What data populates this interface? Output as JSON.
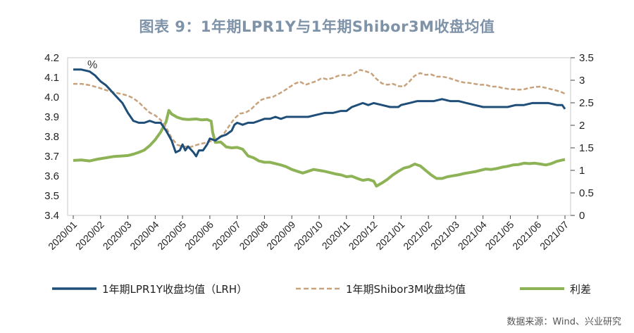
{
  "title": "图表 9：1年期LPR1Y与1年期Shibor3M收盘均值",
  "source": "数据来源：Wind、兴业研究",
  "unit_label": "%",
  "colors": {
    "lpr": "#1f4e79",
    "shibor": "#c8a27c",
    "spread": "#8db356"
  },
  "chart_data": {
    "type": "line",
    "x_labels": [
      "2020/01",
      "2020/02",
      "2020/03",
      "2020/04",
      "2020/05",
      "2020/06",
      "2020/07",
      "2020/08",
      "2020/09",
      "2020/10",
      "2020/11",
      "2020/12",
      "2021/01",
      "2021/02",
      "2021/03",
      "2021/04",
      "2021/05",
      "2021/06",
      "2021/07"
    ],
    "y_left": {
      "min": 3.4,
      "max": 4.2,
      "ticks": [
        "4.2",
        "4.1",
        "4.0",
        "3.9",
        "3.8",
        "3.7",
        "3.6",
        "3.5",
        "3.4"
      ]
    },
    "y_right": {
      "min": 0,
      "max": 3.5,
      "ticks": [
        "3.5",
        "3",
        "2.5",
        "2",
        "1.5",
        "1",
        "0.5",
        "0"
      ]
    },
    "series": [
      {
        "name": "1年期LPR1Y收盘均值（LRH）",
        "axis": "left",
        "style": "solid",
        "points": [
          [
            0,
            4.14
          ],
          [
            0.3,
            4.14
          ],
          [
            0.6,
            4.13
          ],
          [
            0.8,
            4.11
          ],
          [
            1.0,
            4.08
          ],
          [
            1.2,
            4.06
          ],
          [
            1.4,
            4.03
          ],
          [
            1.6,
            4.0
          ],
          [
            1.8,
            3.97
          ],
          [
            2.0,
            3.92
          ],
          [
            2.2,
            3.88
          ],
          [
            2.4,
            3.87
          ],
          [
            2.6,
            3.87
          ],
          [
            2.8,
            3.88
          ],
          [
            3.0,
            3.87
          ],
          [
            3.2,
            3.87
          ],
          [
            3.4,
            3.83
          ],
          [
            3.6,
            3.78
          ],
          [
            3.75,
            3.72
          ],
          [
            3.9,
            3.73
          ],
          [
            4.0,
            3.76
          ],
          [
            4.1,
            3.73
          ],
          [
            4.2,
            3.75
          ],
          [
            4.4,
            3.72
          ],
          [
            4.5,
            3.7
          ],
          [
            4.6,
            3.73
          ],
          [
            4.75,
            3.73
          ],
          [
            4.9,
            3.76
          ],
          [
            5.0,
            3.79
          ],
          [
            5.2,
            3.78
          ],
          [
            5.4,
            3.8
          ],
          [
            5.6,
            3.81
          ],
          [
            5.8,
            3.83
          ],
          [
            5.9,
            3.86
          ],
          [
            6.0,
            3.87
          ],
          [
            6.2,
            3.86
          ],
          [
            6.4,
            3.87
          ],
          [
            6.6,
            3.87
          ],
          [
            6.8,
            3.88
          ],
          [
            7.0,
            3.89
          ],
          [
            7.2,
            3.89
          ],
          [
            7.4,
            3.9
          ],
          [
            7.6,
            3.89
          ],
          [
            7.8,
            3.9
          ],
          [
            8.0,
            3.9
          ],
          [
            8.3,
            3.9
          ],
          [
            8.6,
            3.9
          ],
          [
            8.9,
            3.91
          ],
          [
            9.2,
            3.92
          ],
          [
            9.5,
            3.92
          ],
          [
            9.8,
            3.93
          ],
          [
            10.0,
            3.93
          ],
          [
            10.2,
            3.95
          ],
          [
            10.4,
            3.96
          ],
          [
            10.6,
            3.97
          ],
          [
            10.8,
            3.96
          ],
          [
            11.0,
            3.97
          ],
          [
            11.3,
            3.96
          ],
          [
            11.6,
            3.95
          ],
          [
            11.9,
            3.95
          ],
          [
            12.0,
            3.96
          ],
          [
            12.3,
            3.97
          ],
          [
            12.6,
            3.98
          ],
          [
            12.9,
            3.98
          ],
          [
            13.2,
            3.98
          ],
          [
            13.5,
            3.99
          ],
          [
            13.8,
            3.98
          ],
          [
            14.1,
            3.98
          ],
          [
            14.4,
            3.97
          ],
          [
            14.7,
            3.96
          ],
          [
            15.0,
            3.95
          ],
          [
            15.3,
            3.95
          ],
          [
            15.6,
            3.95
          ],
          [
            15.9,
            3.95
          ],
          [
            16.2,
            3.96
          ],
          [
            16.5,
            3.96
          ],
          [
            16.8,
            3.97
          ],
          [
            17.1,
            3.97
          ],
          [
            17.4,
            3.97
          ],
          [
            17.7,
            3.96
          ],
          [
            17.9,
            3.96
          ],
          [
            18.0,
            3.94
          ]
        ]
      },
      {
        "name": "1年期Shibor3M收盘均值",
        "axis": "right",
        "style": "dashed",
        "points": [
          [
            0,
            2.92
          ],
          [
            0.3,
            2.92
          ],
          [
            0.6,
            2.89
          ],
          [
            0.9,
            2.84
          ],
          [
            1.2,
            2.78
          ],
          [
            1.5,
            2.73
          ],
          [
            1.8,
            2.69
          ],
          [
            2.0,
            2.66
          ],
          [
            2.2,
            2.6
          ],
          [
            2.4,
            2.51
          ],
          [
            2.6,
            2.39
          ],
          [
            2.8,
            2.28
          ],
          [
            3.0,
            2.22
          ],
          [
            3.2,
            2.12
          ],
          [
            3.4,
            1.95
          ],
          [
            3.6,
            1.72
          ],
          [
            3.8,
            1.57
          ],
          [
            4.0,
            1.53
          ],
          [
            4.3,
            1.52
          ],
          [
            4.6,
            1.58
          ],
          [
            4.9,
            1.62
          ],
          [
            5.2,
            1.68
          ],
          [
            5.5,
            1.8
          ],
          [
            5.7,
            1.98
          ],
          [
            5.9,
            2.15
          ],
          [
            6.1,
            2.26
          ],
          [
            6.3,
            2.28
          ],
          [
            6.5,
            2.35
          ],
          [
            6.7,
            2.47
          ],
          [
            6.9,
            2.57
          ],
          [
            7.1,
            2.61
          ],
          [
            7.3,
            2.63
          ],
          [
            7.5,
            2.69
          ],
          [
            7.7,
            2.76
          ],
          [
            7.9,
            2.84
          ],
          [
            8.1,
            2.92
          ],
          [
            8.3,
            2.97
          ],
          [
            8.5,
            2.9
          ],
          [
            8.7,
            2.94
          ],
          [
            8.9,
            2.98
          ],
          [
            9.1,
            3.05
          ],
          [
            9.3,
            3.02
          ],
          [
            9.5,
            3.05
          ],
          [
            9.7,
            3.1
          ],
          [
            9.9,
            3.12
          ],
          [
            10.1,
            3.1
          ],
          [
            10.3,
            3.16
          ],
          [
            10.5,
            3.23
          ],
          [
            10.7,
            3.2
          ],
          [
            10.9,
            3.16
          ],
          [
            11.1,
            3.03
          ],
          [
            11.3,
            2.93
          ],
          [
            11.5,
            2.9
          ],
          [
            11.7,
            2.92
          ],
          [
            11.9,
            2.87
          ],
          [
            12.1,
            2.86
          ],
          [
            12.3,
            2.97
          ],
          [
            12.5,
            3.1
          ],
          [
            12.7,
            3.16
          ],
          [
            12.9,
            3.12
          ],
          [
            13.1,
            3.13
          ],
          [
            13.3,
            3.08
          ],
          [
            13.5,
            3.08
          ],
          [
            13.7,
            3.06
          ],
          [
            13.9,
            3.02
          ],
          [
            14.1,
            2.98
          ],
          [
            14.3,
            2.95
          ],
          [
            14.5,
            2.94
          ],
          [
            14.7,
            2.92
          ],
          [
            14.9,
            2.9
          ],
          [
            15.1,
            2.9
          ],
          [
            15.3,
            2.86
          ],
          [
            15.5,
            2.86
          ],
          [
            15.7,
            2.83
          ],
          [
            15.9,
            2.81
          ],
          [
            16.1,
            2.8
          ],
          [
            16.3,
            2.79
          ],
          [
            16.5,
            2.8
          ],
          [
            16.7,
            2.83
          ],
          [
            16.9,
            2.85
          ],
          [
            17.1,
            2.86
          ],
          [
            17.3,
            2.83
          ],
          [
            17.5,
            2.8
          ],
          [
            17.7,
            2.77
          ],
          [
            17.9,
            2.73
          ],
          [
            18.0,
            2.7
          ]
        ]
      },
      {
        "name": "利差",
        "axis": "right",
        "style": "solid",
        "points": [
          [
            0,
            1.22
          ],
          [
            0.3,
            1.23
          ],
          [
            0.6,
            1.21
          ],
          [
            0.9,
            1.25
          ],
          [
            1.2,
            1.28
          ],
          [
            1.5,
            1.31
          ],
          [
            1.8,
            1.32
          ],
          [
            2.0,
            1.33
          ],
          [
            2.2,
            1.36
          ],
          [
            2.4,
            1.4
          ],
          [
            2.6,
            1.45
          ],
          [
            2.8,
            1.55
          ],
          [
            3.0,
            1.68
          ],
          [
            3.2,
            1.85
          ],
          [
            3.4,
            2.08
          ],
          [
            3.5,
            2.33
          ],
          [
            3.6,
            2.25
          ],
          [
            3.8,
            2.18
          ],
          [
            4.0,
            2.14
          ],
          [
            4.2,
            2.13
          ],
          [
            4.5,
            2.14
          ],
          [
            4.7,
            2.12
          ],
          [
            4.9,
            2.13
          ],
          [
            5.05,
            2.09
          ],
          [
            5.1,
            1.85
          ],
          [
            5.2,
            1.62
          ],
          [
            5.4,
            1.63
          ],
          [
            5.6,
            1.52
          ],
          [
            5.8,
            1.5
          ],
          [
            6.0,
            1.51
          ],
          [
            6.2,
            1.47
          ],
          [
            6.4,
            1.32
          ],
          [
            6.6,
            1.28
          ],
          [
            6.8,
            1.21
          ],
          [
            7.0,
            1.18
          ],
          [
            7.2,
            1.18
          ],
          [
            7.4,
            1.15
          ],
          [
            7.6,
            1.12
          ],
          [
            7.8,
            1.08
          ],
          [
            8.0,
            1.02
          ],
          [
            8.2,
            0.98
          ],
          [
            8.4,
            0.94
          ],
          [
            8.6,
            0.98
          ],
          [
            8.8,
            1.02
          ],
          [
            9.0,
            1.0
          ],
          [
            9.2,
            0.98
          ],
          [
            9.4,
            0.95
          ],
          [
            9.6,
            0.92
          ],
          [
            9.8,
            0.9
          ],
          [
            10.0,
            0.86
          ],
          [
            10.2,
            0.87
          ],
          [
            10.4,
            0.82
          ],
          [
            10.6,
            0.78
          ],
          [
            10.8,
            0.8
          ],
          [
            11.0,
            0.76
          ],
          [
            11.1,
            0.65
          ],
          [
            11.3,
            0.72
          ],
          [
            11.5,
            0.8
          ],
          [
            11.7,
            0.9
          ],
          [
            11.9,
            0.98
          ],
          [
            12.1,
            1.05
          ],
          [
            12.3,
            1.08
          ],
          [
            12.5,
            1.14
          ],
          [
            12.7,
            1.1
          ],
          [
            12.9,
            1.0
          ],
          [
            13.1,
            0.9
          ],
          [
            13.3,
            0.82
          ],
          [
            13.5,
            0.82
          ],
          [
            13.7,
            0.86
          ],
          [
            13.9,
            0.88
          ],
          [
            14.1,
            0.9
          ],
          [
            14.3,
            0.93
          ],
          [
            14.5,
            0.95
          ],
          [
            14.7,
            0.97
          ],
          [
            14.9,
            1.0
          ],
          [
            15.1,
            1.03
          ],
          [
            15.3,
            1.02
          ],
          [
            15.5,
            1.04
          ],
          [
            15.7,
            1.07
          ],
          [
            15.9,
            1.09
          ],
          [
            16.1,
            1.12
          ],
          [
            16.3,
            1.13
          ],
          [
            16.5,
            1.16
          ],
          [
            16.7,
            1.15
          ],
          [
            16.9,
            1.16
          ],
          [
            17.1,
            1.14
          ],
          [
            17.3,
            1.12
          ],
          [
            17.5,
            1.15
          ],
          [
            17.7,
            1.2
          ],
          [
            17.9,
            1.23
          ],
          [
            18.0,
            1.24
          ]
        ]
      }
    ]
  }
}
